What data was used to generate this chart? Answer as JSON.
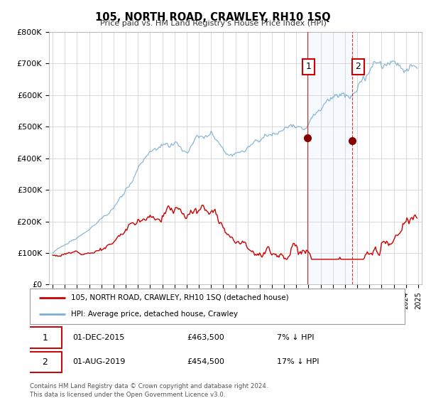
{
  "title": "105, NORTH ROAD, CRAWLEY, RH10 1SQ",
  "subtitle": "Price paid vs. HM Land Registry's House Price Index (HPI)",
  "legend_entry1": "105, NORTH ROAD, CRAWLEY, RH10 1SQ (detached house)",
  "legend_entry2": "HPI: Average price, detached house, Crawley",
  "annotation1_label": "1",
  "annotation1_date": "01-DEC-2015",
  "annotation1_price": "£463,500",
  "annotation1_hpi": "7% ↓ HPI",
  "annotation1_year": 2015.92,
  "annotation1_value": 463500,
  "annotation2_label": "2",
  "annotation2_date": "01-AUG-2019",
  "annotation2_price": "£454,500",
  "annotation2_hpi": "17% ↓ HPI",
  "annotation2_year": 2019.58,
  "annotation2_value": 454500,
  "footer": "Contains HM Land Registry data © Crown copyright and database right 2024.\nThis data is licensed under the Open Government Licence v3.0.",
  "hpi_line_color": "#7bafd4",
  "price_line_color": "#cc0000",
  "dot_color": "#880000",
  "shade_color": "#ddeeff",
  "vline1_color": "#cc0000",
  "vline2_color": "#cc0000",
  "ylim": [
    0,
    800000
  ],
  "yticks": [
    0,
    100000,
    200000,
    300000,
    400000,
    500000,
    600000,
    700000,
    800000
  ],
  "ytick_labels": [
    "£0",
    "£100K",
    "£200K",
    "£300K",
    "£400K",
    "£500K",
    "£600K",
    "£700K",
    "£800K"
  ],
  "xlim_start": 1994.7,
  "xlim_end": 2025.3,
  "grid_color": "#cccccc",
  "background_color": "#ffffff"
}
